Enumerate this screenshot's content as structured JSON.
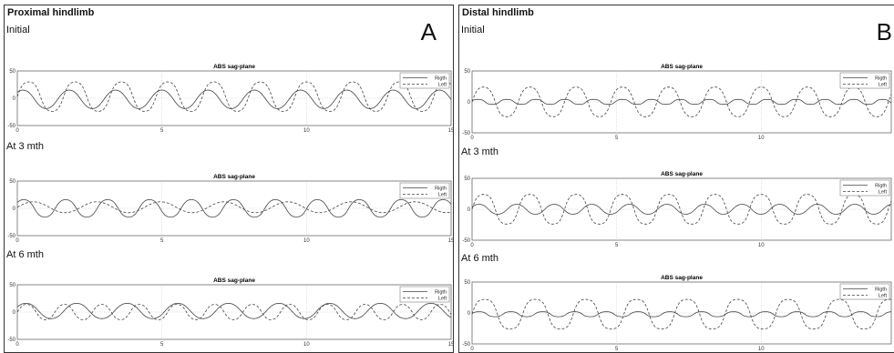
{
  "panels": {
    "a": {
      "title": "Proximal hindlimb",
      "letter": "A"
    },
    "b": {
      "title": "Distal hindlimb",
      "letter": "B"
    }
  },
  "time_labels": [
    "Initial",
    "At 3 mth",
    "At 6 mth"
  ],
  "chart_data": [
    {
      "id": "a0",
      "type": "line",
      "title": "ABS sag-plane",
      "legend_position": "top-right",
      "grid": true,
      "xlim": [
        0,
        15
      ],
      "ylim": [
        -50,
        50
      ],
      "xticks": [
        0,
        5,
        10,
        15
      ],
      "yticks": [
        -50,
        0,
        50
      ],
      "series": [
        {
          "name": "Rigth",
          "style": "solid",
          "period": 1.6,
          "amp": 17,
          "phase": 0.8,
          "offset": -2,
          "sharp": 0.6
        },
        {
          "name": "Left",
          "style": "dashed",
          "period": 1.6,
          "amp": 27,
          "phase": 0.0,
          "offset": 3,
          "sharp": 1.2
        }
      ]
    },
    {
      "id": "a1",
      "type": "line",
      "title": "ABS sag-plane",
      "legend_position": "top-right",
      "grid": true,
      "xlim": [
        0,
        15
      ],
      "ylim": [
        -50,
        50
      ],
      "xticks": [
        0,
        5,
        10,
        15
      ],
      "yticks": [
        -50,
        0,
        50
      ],
      "series": [
        {
          "name": "Rigth",
          "style": "solid",
          "period": 1.45,
          "amp": 16,
          "phase": 0.6,
          "offset": 0,
          "sharp": 1.0
        },
        {
          "name": "Left",
          "style": "dashed",
          "period": 2.2,
          "amp": 10,
          "phase": 0.0,
          "offset": 2,
          "sharp": 0.3
        }
      ]
    },
    {
      "id": "a2",
      "type": "line",
      "title": "ABS sag-plane",
      "legend_position": "top-right",
      "grid": true,
      "xlim": [
        0,
        15
      ],
      "ylim": [
        -50,
        50
      ],
      "xticks": [
        0,
        5,
        10,
        15
      ],
      "yticks": [
        -50,
        0,
        50
      ],
      "series": [
        {
          "name": "Rigth",
          "style": "solid",
          "period": 1.75,
          "amp": 14,
          "phase": 0.5,
          "offset": 2,
          "sharp": 0.7
        },
        {
          "name": "Left",
          "style": "dashed",
          "period": 1.3,
          "amp": 14,
          "phase": 0.0,
          "offset": 0,
          "sharp": 0.9
        }
      ]
    },
    {
      "id": "b0",
      "type": "line",
      "title": "ABS sag-plane",
      "legend_position": "top-right",
      "grid": true,
      "xlim": [
        0,
        14.5
      ],
      "ylim": [
        -50,
        50
      ],
      "xticks": [
        0,
        5,
        10
      ],
      "yticks": [
        -50,
        0,
        50
      ],
      "series": [
        {
          "name": "Rigth",
          "style": "solid",
          "period": 1.0,
          "amp": 4,
          "phase": 0.3,
          "offset": 0,
          "sharp": 1.3
        },
        {
          "name": "Left",
          "style": "dashed",
          "period": 1.6,
          "amp": 24,
          "phase": 0.0,
          "offset": 0,
          "sharp": 1.2
        }
      ]
    },
    {
      "id": "b1",
      "type": "line",
      "title": "ABS sag-plane",
      "legend_position": "top-right",
      "grid": true,
      "xlim": [
        0,
        14.5
      ],
      "ylim": [
        -50,
        50
      ],
      "xticks": [
        0,
        5,
        10
      ],
      "yticks": [
        -50,
        0,
        50
      ],
      "series": [
        {
          "name": "Rigth",
          "style": "solid",
          "period": 1.3,
          "amp": 8,
          "phase": 0.4,
          "offset": 0,
          "sharp": 0.8
        },
        {
          "name": "Left",
          "style": "dashed",
          "period": 1.6,
          "amp": 24,
          "phase": 0.0,
          "offset": 0,
          "sharp": 1.4
        }
      ]
    },
    {
      "id": "b2",
      "type": "line",
      "title": "ABS sag-plane",
      "legend_position": "top-right",
      "grid": true,
      "xlim": [
        0,
        14.5
      ],
      "ylim": [
        -50,
        50
      ],
      "xticks": [
        0,
        5,
        10
      ],
      "yticks": [
        -50,
        0,
        50
      ],
      "series": [
        {
          "name": "Rigth",
          "style": "solid",
          "period": 1.1,
          "amp": 4,
          "phase": 0.2,
          "offset": -2,
          "sharp": 1.3
        },
        {
          "name": "Left",
          "style": "dashed",
          "period": 1.75,
          "amp": 24,
          "phase": 0.0,
          "offset": -2,
          "sharp": 1.5
        }
      ]
    }
  ]
}
